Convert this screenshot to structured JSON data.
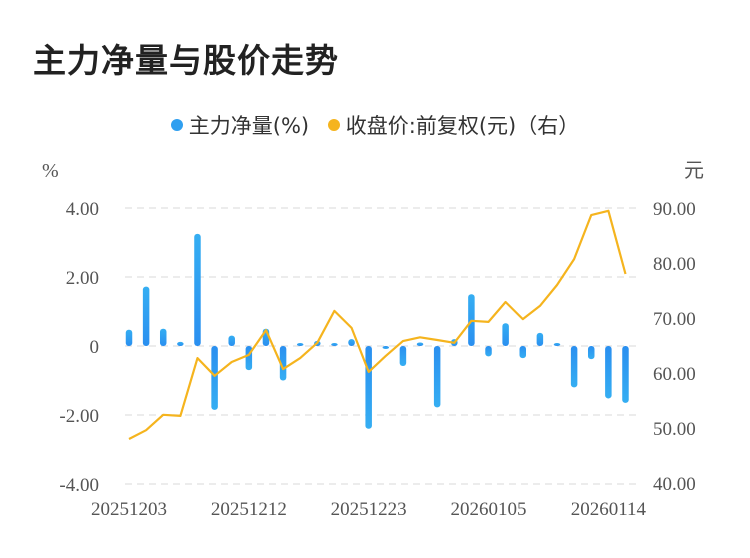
{
  "title": "主力净量与股价走势",
  "legend": {
    "items": [
      {
        "label": "主力净量(%)",
        "color": "#2f9ff0"
      },
      {
        "label": "收盘价:前复权(元)（右）",
        "color": "#f5b41e"
      }
    ]
  },
  "axes": {
    "left_unit": "%",
    "right_unit": "元",
    "left_ticks": [
      "4.00",
      "2.00",
      "0",
      "-2.00",
      "-4.00"
    ],
    "right_ticks": [
      "90.00",
      "80.00",
      "70.00",
      "60.00",
      "50.00",
      "40.00"
    ],
    "x_ticks": [
      "20251203",
      "20251212",
      "20251223",
      "20260105",
      "20260114"
    ]
  },
  "colors": {
    "bar": "#2f9ff0",
    "line": "#f5b41e",
    "grid": "#e6e6e6"
  },
  "chart_data": {
    "type": "bar+line",
    "title": "主力净量与股价走势",
    "xlabel": "",
    "ylabel": "%",
    "ylabel_right": "元",
    "ylim": [
      -4,
      4
    ],
    "ylim_right": [
      40,
      90
    ],
    "grid": true,
    "legend_position": "top",
    "x_tick_labels": [
      "20251203",
      "20251212",
      "20251223",
      "20260105",
      "20260114"
    ],
    "x_tick_indices": [
      0,
      7,
      14,
      21,
      28
    ],
    "series": [
      {
        "name": "主力净量(%)",
        "type": "bar",
        "axis": "left",
        "values": [
          0.47,
          1.72,
          0.5,
          0.12,
          3.25,
          -1.85,
          0.3,
          -0.7,
          0.5,
          -1.0,
          0.06,
          0.15,
          0.08,
          0.2,
          -2.4,
          -0.05,
          -0.58,
          0.1,
          -1.78,
          0.2,
          1.5,
          -0.3,
          0.66,
          -0.35,
          0.38,
          0.08,
          -1.2,
          -0.38,
          -1.52,
          -1.65
        ]
      },
      {
        "name": "收盘价:前复权(元)（右）",
        "type": "line",
        "axis": "right",
        "values": [
          48.0,
          49.6,
          52.4,
          52.2,
          62.7,
          59.5,
          62.0,
          63.3,
          67.8,
          60.7,
          62.7,
          65.5,
          71.3,
          68.2,
          60.2,
          63.1,
          65.8,
          66.5,
          66.0,
          65.5,
          69.5,
          69.3,
          72.9,
          69.8,
          72.2,
          76.0,
          80.7,
          88.7,
          89.5,
          78.0
        ]
      }
    ]
  }
}
